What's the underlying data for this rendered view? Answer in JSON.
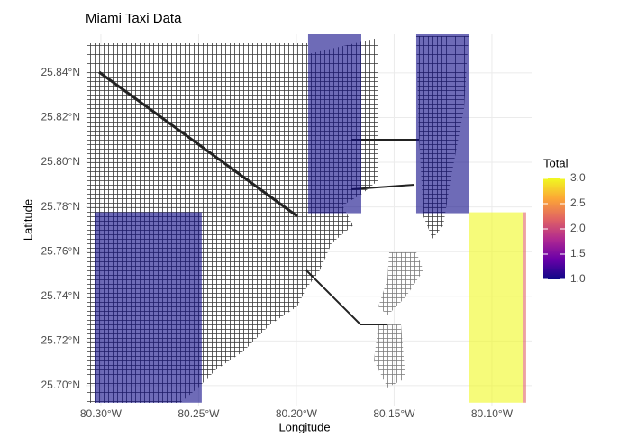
{
  "chart_data": {
    "type": "tile",
    "title": "Miami Taxi Data",
    "xlabel": "Longitude",
    "ylabel": "Latitude",
    "xlim": [
      -80.3078,
      -80.0797
    ],
    "ylim": [
      25.6911,
      25.8573
    ],
    "xticks": [
      {
        "value": -80.3,
        "label": "80.30°W"
      },
      {
        "value": -80.25,
        "label": "80.25°W"
      },
      {
        "value": -80.2,
        "label": "80.20°W"
      },
      {
        "value": -80.15,
        "label": "80.15°W"
      },
      {
        "value": -80.1,
        "label": "80.10°W"
      }
    ],
    "yticks": [
      {
        "value": 25.7,
        "label": "25.70°N"
      },
      {
        "value": 25.72,
        "label": "25.72°N"
      },
      {
        "value": 25.74,
        "label": "25.74°N"
      },
      {
        "value": 25.76,
        "label": "25.76°N"
      },
      {
        "value": 25.78,
        "label": "25.78°N"
      },
      {
        "value": 25.8,
        "label": "25.80°N"
      },
      {
        "value": 25.82,
        "label": "25.82°N"
      },
      {
        "value": 25.84,
        "label": "25.84°N"
      }
    ],
    "grid": true,
    "tiles": [
      {
        "xmin": -80.3032,
        "xmax": -80.2484,
        "ymin": 25.6924,
        "ymax": 25.7776,
        "value": 1
      },
      {
        "xmin": -80.194,
        "xmax": -80.1668,
        "ymin": 25.7772,
        "ymax": 25.8573,
        "value": 1
      },
      {
        "xmin": -80.1387,
        "xmax": -80.1115,
        "ymin": 25.7772,
        "ymax": 25.8573,
        "value": 1
      },
      {
        "xmin": -80.1115,
        "xmax": -80.0839,
        "ymin": 25.6924,
        "ymax": 25.7776,
        "value": 3
      },
      {
        "xmin": -80.0839,
        "xmax": -80.0825,
        "ymin": 25.6924,
        "ymax": 25.7776,
        "value": 2.2
      }
    ],
    "tile_alpha": 0.6,
    "legend_title": "Total",
    "colorscale": [
      "#0d0887",
      "#6a00a8",
      "#b12a90",
      "#e16462",
      "#fca636",
      "#f0f921"
    ],
    "clim": [
      1,
      3
    ],
    "cticks": [
      {
        "value": 1,
        "label": "1.0"
      },
      {
        "value": 1.5,
        "label": "1.5"
      },
      {
        "value": 2,
        "label": "2.0"
      },
      {
        "value": 2.5,
        "label": "2.5"
      },
      {
        "value": 3,
        "label": "3.0"
      }
    ]
  }
}
